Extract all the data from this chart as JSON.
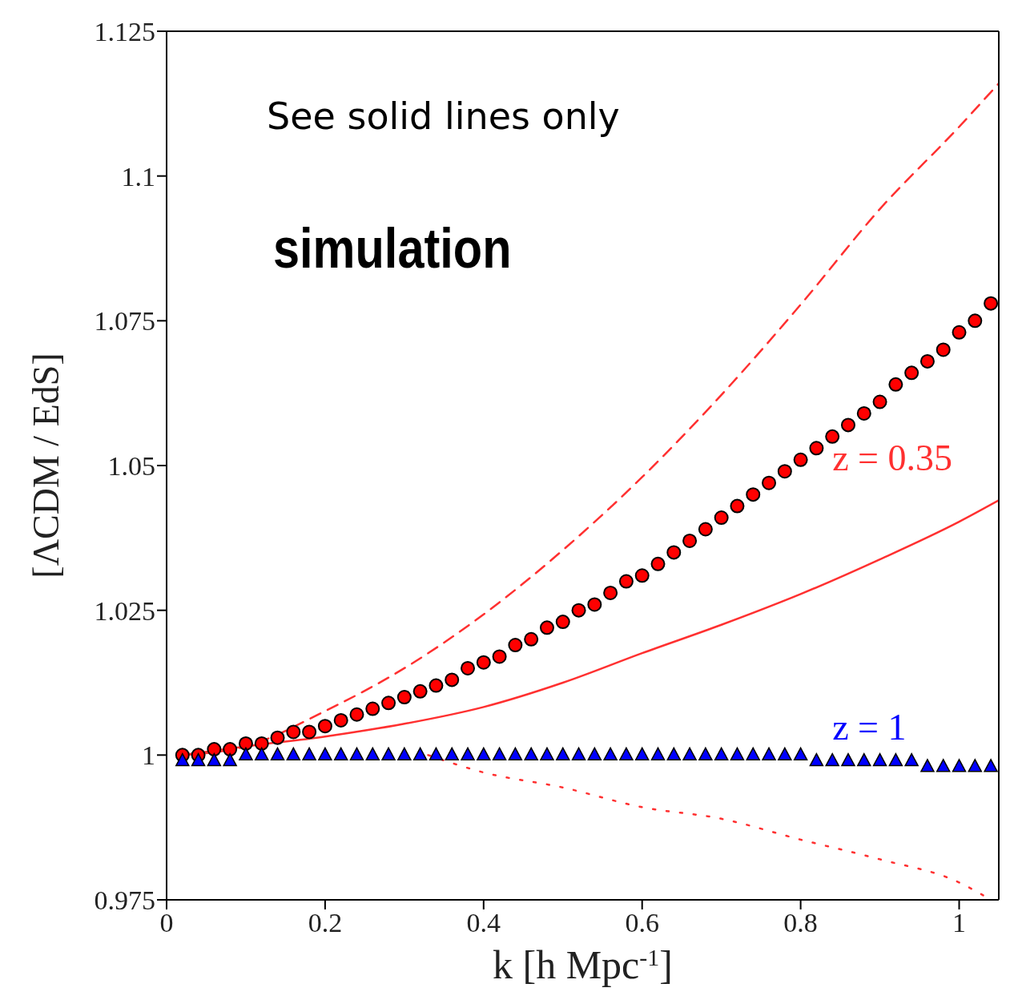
{
  "chart_data": {
    "type": "line",
    "xlabel": "k [h Mpc$^{-1}$]",
    "ylabel": "[ΛCDM / EdS]",
    "xlim": [
      0,
      1.05
    ],
    "xticks": [
      0,
      0.2,
      0.4,
      0.6,
      0.8,
      1
    ],
    "ylim": [
      0.975,
      1.125
    ],
    "yticks": [
      0.975,
      1,
      1.025,
      1.05,
      1.075,
      1.1,
      1.125
    ],
    "annotations": [
      "See solid lines only",
      "simulation",
      "z = 0.35",
      "z = 1"
    ],
    "series": [
      {
        "type": "line",
        "color": "#ff3030",
        "line_style": "solid",
        "marker": "none",
        "x": [
          0.02,
          0.1,
          0.2,
          0.3,
          0.4,
          0.5,
          0.6,
          0.7,
          0.8,
          0.9,
          1.0,
          1.05
        ],
        "values": [
          1.0,
          1.0015,
          1.0032,
          1.0054,
          1.0083,
          1.0125,
          1.0176,
          1.0225,
          1.0278,
          1.0338,
          1.0403,
          1.044
        ]
      },
      {
        "type": "line",
        "color": "#ff3030",
        "line_style": "dashed",
        "marker": "none",
        "x": [
          0.02,
          0.1,
          0.2,
          0.3,
          0.4,
          0.5,
          0.6,
          0.7,
          0.8,
          0.9,
          1.0,
          1.05
        ],
        "values": [
          1.0,
          1.0015,
          1.0076,
          1.015,
          1.0243,
          1.0354,
          1.048,
          1.0622,
          1.0778,
          1.0943,
          1.1085,
          1.116
        ]
      },
      {
        "type": "line",
        "color": "#ff3030",
        "line_style": "dotted",
        "marker": "none",
        "x": [
          0.33,
          0.4,
          0.5,
          0.6,
          0.7,
          0.8,
          0.9,
          1.0,
          1.04
        ],
        "values": [
          1.0,
          0.997,
          0.9944,
          0.991,
          0.989,
          0.9854,
          0.982,
          0.978,
          0.975
        ]
      },
      {
        "type": "scatter",
        "color": "#ff0000",
        "marker": "circle",
        "x": [
          0.02,
          0.04,
          0.06,
          0.08,
          0.1,
          0.12,
          0.14,
          0.16,
          0.18,
          0.2,
          0.22,
          0.24,
          0.26,
          0.28,
          0.3,
          0.32,
          0.34,
          0.36,
          0.38,
          0.4,
          0.42,
          0.44,
          0.46,
          0.48,
          0.5,
          0.52,
          0.54,
          0.56,
          0.58,
          0.6,
          0.62,
          0.64,
          0.66,
          0.68,
          0.7,
          0.72,
          0.74,
          0.76,
          0.78,
          0.8,
          0.82,
          0.84,
          0.86,
          0.88,
          0.9,
          0.92,
          0.94,
          0.96,
          0.98,
          1.0,
          1.02,
          1.04
        ],
        "values": [
          1.0,
          1.0,
          1.001,
          1.001,
          1.002,
          1.002,
          1.003,
          1.004,
          1.004,
          1.005,
          1.006,
          1.007,
          1.008,
          1.009,
          1.01,
          1.011,
          1.012,
          1.013,
          1.015,
          1.016,
          1.017,
          1.019,
          1.02,
          1.022,
          1.023,
          1.025,
          1.026,
          1.028,
          1.03,
          1.031,
          1.033,
          1.035,
          1.037,
          1.039,
          1.041,
          1.043,
          1.045,
          1.047,
          1.049,
          1.051,
          1.053,
          1.055,
          1.057,
          1.059,
          1.061,
          1.064,
          1.066,
          1.068,
          1.07,
          1.073,
          1.075,
          1.078
        ]
      },
      {
        "type": "scatter",
        "color": "#0000ff",
        "marker": "triangle",
        "x": [
          0.02,
          0.04,
          0.06,
          0.08,
          0.1,
          0.12,
          0.14,
          0.16,
          0.18,
          0.2,
          0.22,
          0.24,
          0.26,
          0.28,
          0.3,
          0.32,
          0.34,
          0.36,
          0.38,
          0.4,
          0.42,
          0.44,
          0.46,
          0.48,
          0.5,
          0.52,
          0.54,
          0.56,
          0.58,
          0.6,
          0.62,
          0.64,
          0.66,
          0.68,
          0.7,
          0.72,
          0.74,
          0.76,
          0.78,
          0.8,
          0.82,
          0.84,
          0.86,
          0.88,
          0.9,
          0.92,
          0.94,
          0.96,
          0.98,
          1.0,
          1.02,
          1.04
        ],
        "values": [
          0.999,
          0.999,
          0.999,
          0.999,
          1.0,
          1.0,
          1.0,
          1.0,
          1.0,
          1.0,
          1.0,
          1.0,
          1.0,
          1.0,
          1.0,
          1.0,
          1.0,
          1.0,
          1.0,
          1.0,
          1.0,
          1.0,
          1.0,
          1.0,
          1.0,
          1.0,
          1.0,
          1.0,
          1.0,
          1.0,
          1.0,
          1.0,
          1.0,
          1.0,
          1.0,
          1.0,
          1.0,
          1.0,
          1.0,
          1.0,
          0.999,
          0.999,
          0.999,
          0.999,
          0.999,
          0.999,
          0.999,
          0.998,
          0.998,
          0.998,
          0.998,
          0.998
        ]
      }
    ]
  }
}
